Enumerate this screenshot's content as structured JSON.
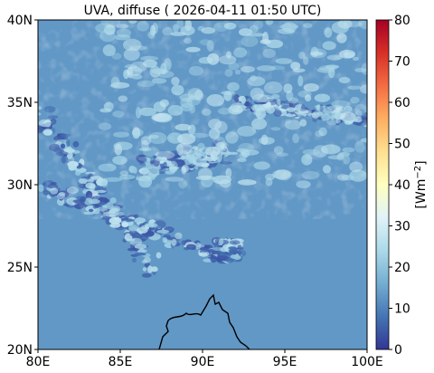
{
  "chart_data": {
    "type": "heatmap",
    "title": "UVA, diffuse ( 2026-04-11 01:50 UTC)",
    "xlabel": "",
    "ylabel": "",
    "x_ticks": [
      "80E",
      "85E",
      "90E",
      "95E",
      "100E"
    ],
    "y_ticks": [
      "20N",
      "25N",
      "30N",
      "35N",
      "40N"
    ],
    "xlim": [
      80,
      100
    ],
    "ylim": [
      20,
      40
    ],
    "colorbar": {
      "label": "[Wm$^{-2}$]",
      "label_text": "[Wm",
      "label_sup": "−2",
      "label_close": "]",
      "ticks": [
        "0",
        "10",
        "20",
        "30",
        "40",
        "50",
        "60",
        "70",
        "80"
      ],
      "range": [
        0,
        80
      ],
      "colormap": "RdYlBu_r",
      "colors": [
        "#313695",
        "#4575b4",
        "#74add1",
        "#abd9e9",
        "#e0f3f8",
        "#ffffbf",
        "#fee090",
        "#fdae61",
        "#f46d43",
        "#d73027",
        "#a50026"
      ]
    },
    "background_color": "#5b8fc9",
    "field_description_values": {
      "clear_sky_typical": 13,
      "cloud_band_low": 3,
      "cloud_band_high": 28
    },
    "grid": false
  }
}
